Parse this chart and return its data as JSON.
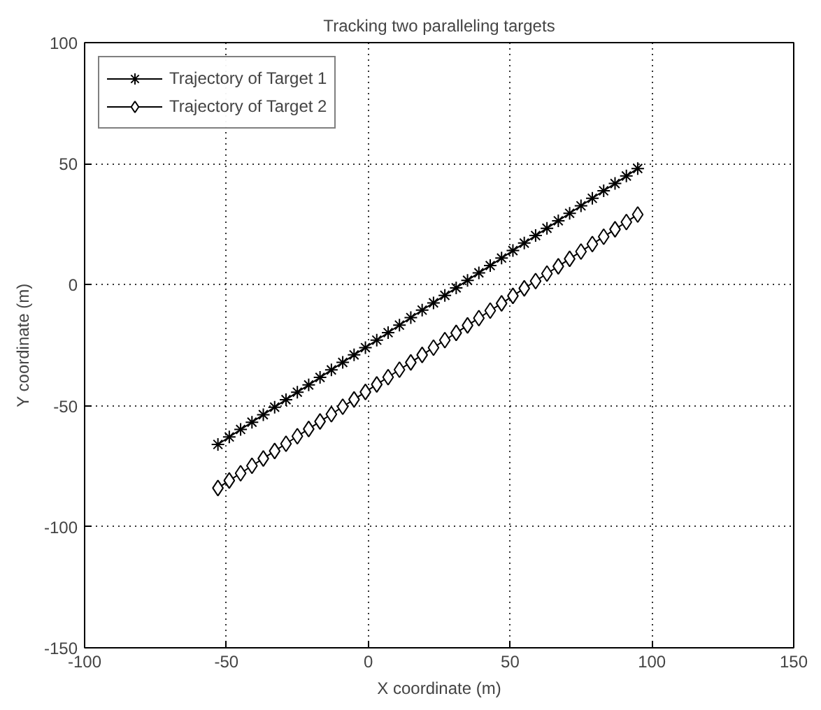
{
  "chart_data": {
    "type": "line",
    "title": "Tracking two paralleling targets",
    "xlabel": "X coordinate (m)",
    "ylabel": "Y coordinate (m)",
    "x": [
      -53,
      -49,
      -45,
      -41,
      -37,
      -33,
      -29,
      -25,
      -21,
      -17,
      -13,
      -9,
      -5,
      -1,
      3,
      7,
      11,
      15,
      19,
      23,
      27,
      31,
      35,
      39,
      43,
      47,
      51,
      55,
      59,
      63,
      67,
      71,
      75,
      79,
      83,
      87,
      91,
      95
    ],
    "series": [
      {
        "name": "Trajectory of Target 1",
        "color": "#000000",
        "marker": "cross",
        "values": [
          -66.0,
          -62.9,
          -59.8,
          -56.8,
          -53.7,
          -50.6,
          -47.5,
          -44.4,
          -41.4,
          -38.3,
          -35.2,
          -32.1,
          -29.0,
          -26.0,
          -22.9,
          -19.8,
          -16.7,
          -13.6,
          -10.5,
          -7.5,
          -4.4,
          -1.3,
          1.8,
          4.9,
          7.9,
          11.0,
          14.1,
          17.2,
          20.3,
          23.3,
          26.4,
          29.5,
          32.6,
          35.7,
          38.8,
          41.8,
          44.9,
          48.0
        ]
      },
      {
        "name": "Trajectory of Target 2",
        "color": "#000000",
        "marker": "diamond",
        "values": [
          -84.0,
          -80.9,
          -77.9,
          -74.8,
          -71.8,
          -68.7,
          -65.7,
          -62.6,
          -59.6,
          -56.5,
          -53.5,
          -50.4,
          -47.4,
          -44.3,
          -41.2,
          -38.2,
          -35.1,
          -32.1,
          -29.0,
          -26.0,
          -22.9,
          -19.9,
          -16.8,
          -13.8,
          -10.7,
          -7.7,
          -4.6,
          -1.5,
          1.5,
          4.6,
          7.6,
          10.7,
          13.7,
          16.8,
          19.8,
          22.9,
          25.9,
          29.0
        ]
      }
    ],
    "xlim": [
      -100,
      150
    ],
    "xticks": [
      -100,
      -50,
      0,
      50,
      100,
      150
    ],
    "ylim": [
      -150,
      100
    ],
    "yticks": [
      -150,
      -100,
      -50,
      0,
      50,
      100
    ],
    "grid": true,
    "legend": "top left",
    "line_style": "solid"
  }
}
